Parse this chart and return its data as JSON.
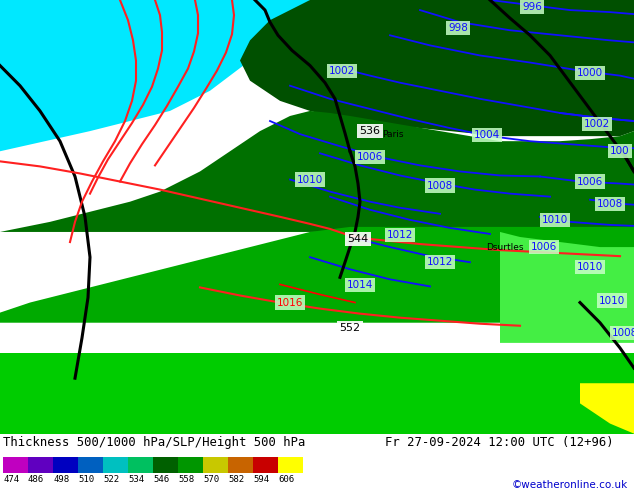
{
  "title_left": "Thickness 500/1000 hPa/SLP/Height 500 hPa",
  "title_right": "Fr 27-09-2024 12:00 UTC (12+96)",
  "credit": "©weatheronline.co.uk",
  "colorbar_values": [
    474,
    486,
    498,
    510,
    522,
    534,
    546,
    558,
    570,
    582,
    594,
    606
  ],
  "colorbar_colors": [
    "#c000c0",
    "#6000c0",
    "#0000c0",
    "#0060c0",
    "#00c0c0",
    "#00c060",
    "#006000",
    "#009600",
    "#c8c800",
    "#c86400",
    "#c80000",
    "#ffff00"
  ],
  "fig_width": 6.34,
  "fig_height": 4.9,
  "dpi": 100,
  "cyan_color": "#00e8ff",
  "dark_green1": "#005000",
  "dark_green2": "#007000",
  "med_green1": "#009000",
  "med_green2": "#00aa00",
  "light_green": "#00cc00",
  "lighter_green": "#44ee44",
  "yellow_green": "#aaff00",
  "bg_gray": "#c8c8c8"
}
